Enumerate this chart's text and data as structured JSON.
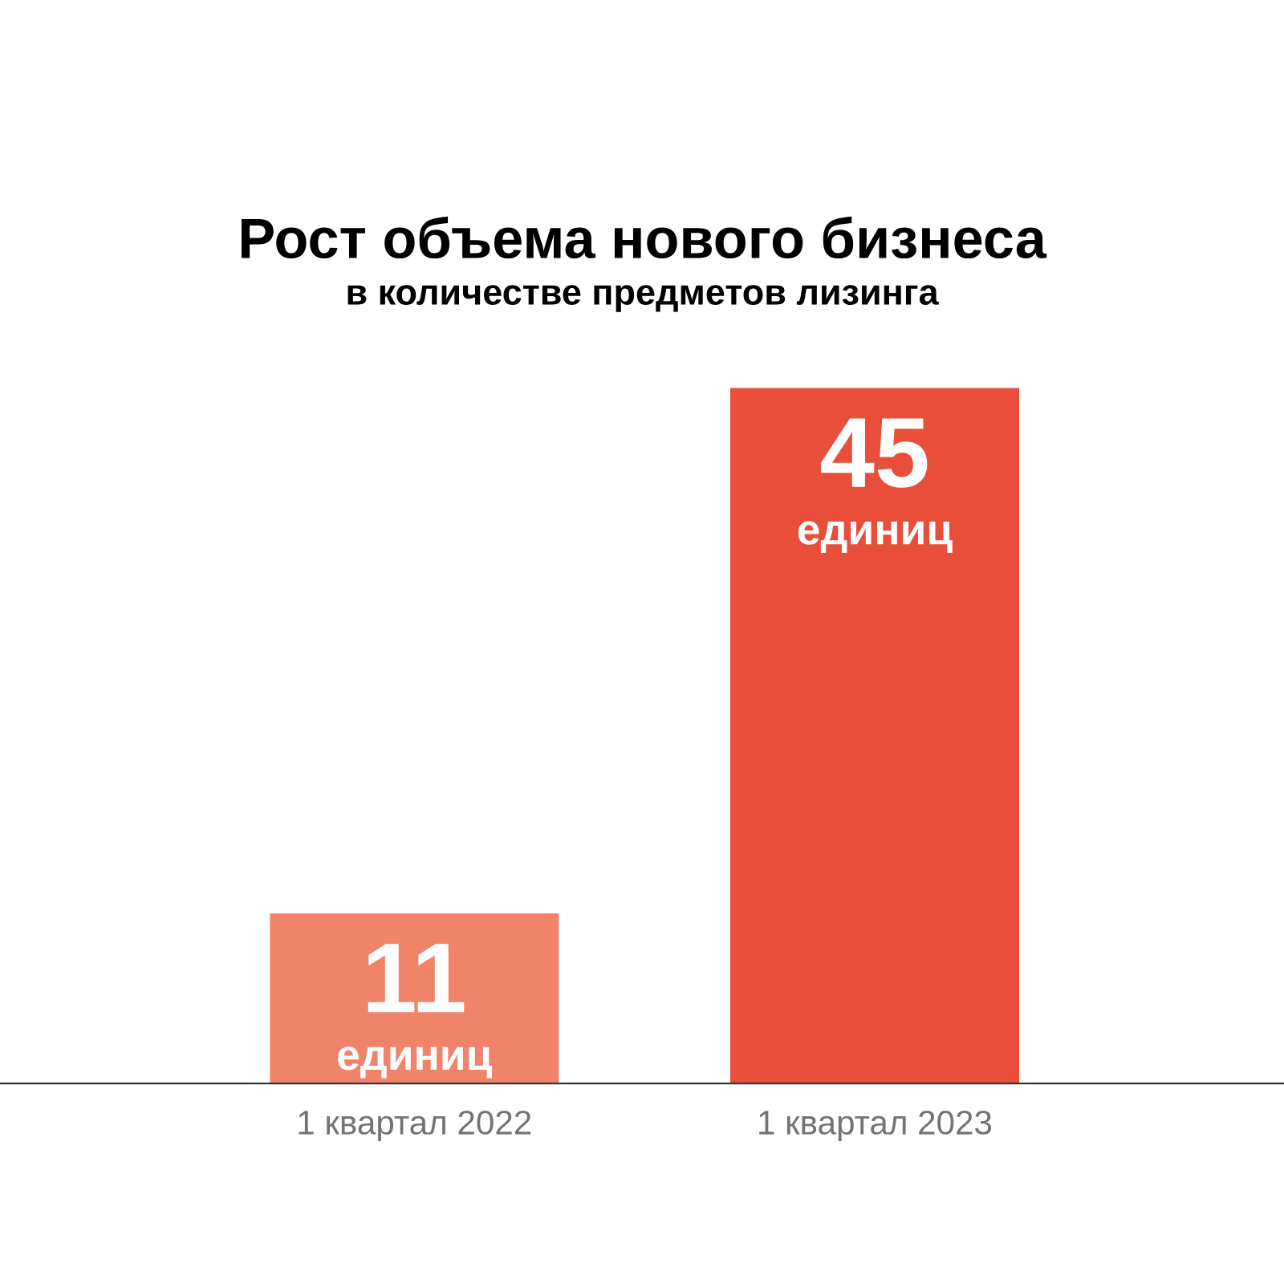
{
  "chart_data": {
    "type": "bar",
    "title": "Рост объема нового бизнеса",
    "subtitle": "в количестве предметов лизинга",
    "categories": [
      "1 квартал 2022",
      "1 квартал 2023"
    ],
    "values": [
      11,
      45
    ],
    "colors": [
      "#f0836a",
      "#e84e3a"
    ],
    "data_labels": true,
    "annotations": [
      "единиц",
      "единиц"
    ]
  }
}
